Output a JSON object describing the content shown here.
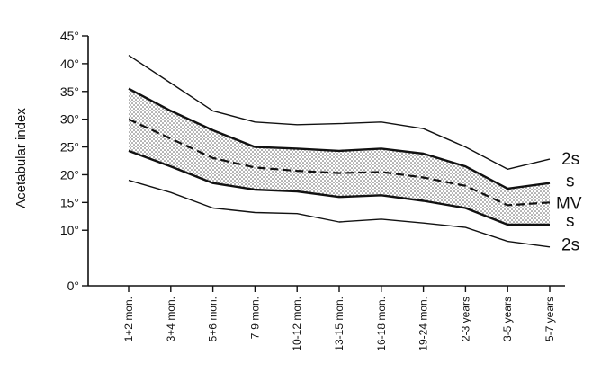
{
  "chart_data": {
    "type": "line",
    "ylabel": "Acetabular index",
    "xlabel": "",
    "ylim": [
      0,
      45
    ],
    "y_ticks": [
      {
        "value": 0,
        "label": "0°"
      },
      {
        "value": 10,
        "label": "10°"
      },
      {
        "value": 15,
        "label": "15°"
      },
      {
        "value": 20,
        "label": "20°"
      },
      {
        "value": 25,
        "label": "25°"
      },
      {
        "value": 30,
        "label": "30°"
      },
      {
        "value": 35,
        "label": "35°"
      },
      {
        "value": 40,
        "label": "40°"
      },
      {
        "value": 45,
        "label": "45°"
      }
    ],
    "categories": [
      "1+2 mon.",
      "3+4 mon.",
      "5+6 mon.",
      "7-9 mon.",
      "10-12 mon.",
      "13-15 mon.",
      "16-18 mon.",
      "19-24 mon.",
      "2-3 years",
      "3-5 years",
      "5-7 years"
    ],
    "series": [
      {
        "name": "2s",
        "style": "solid-thin",
        "values": [
          41.5,
          36.5,
          31.5,
          29.5,
          29.0,
          29.2,
          29.5,
          28.3,
          25.0,
          21.0,
          22.8
        ]
      },
      {
        "name": "s",
        "style": "solid-thick",
        "values": [
          35.5,
          31.5,
          28.0,
          25.0,
          24.7,
          24.3,
          24.7,
          23.8,
          21.5,
          17.5,
          18.5
        ]
      },
      {
        "name": "MV",
        "style": "dashed",
        "values": [
          30.0,
          26.5,
          23.0,
          21.3,
          20.7,
          20.3,
          20.5,
          19.5,
          18.0,
          14.5,
          15.0
        ]
      },
      {
        "name": "s",
        "style": "solid-thick",
        "values": [
          24.3,
          21.5,
          18.5,
          17.3,
          17.0,
          16.0,
          16.3,
          15.3,
          14.0,
          11.0,
          11.0
        ]
      },
      {
        "name": "2s",
        "style": "solid-thin",
        "values": [
          19.0,
          16.8,
          14.0,
          13.2,
          13.0,
          11.5,
          12.0,
          11.3,
          10.5,
          8.0,
          7.0
        ]
      }
    ],
    "band": {
      "between": [
        1,
        3
      ],
      "fill": "stippled"
    },
    "grid": false,
    "colors": {
      "line": "#111111",
      "band_dot": "#555555"
    }
  }
}
